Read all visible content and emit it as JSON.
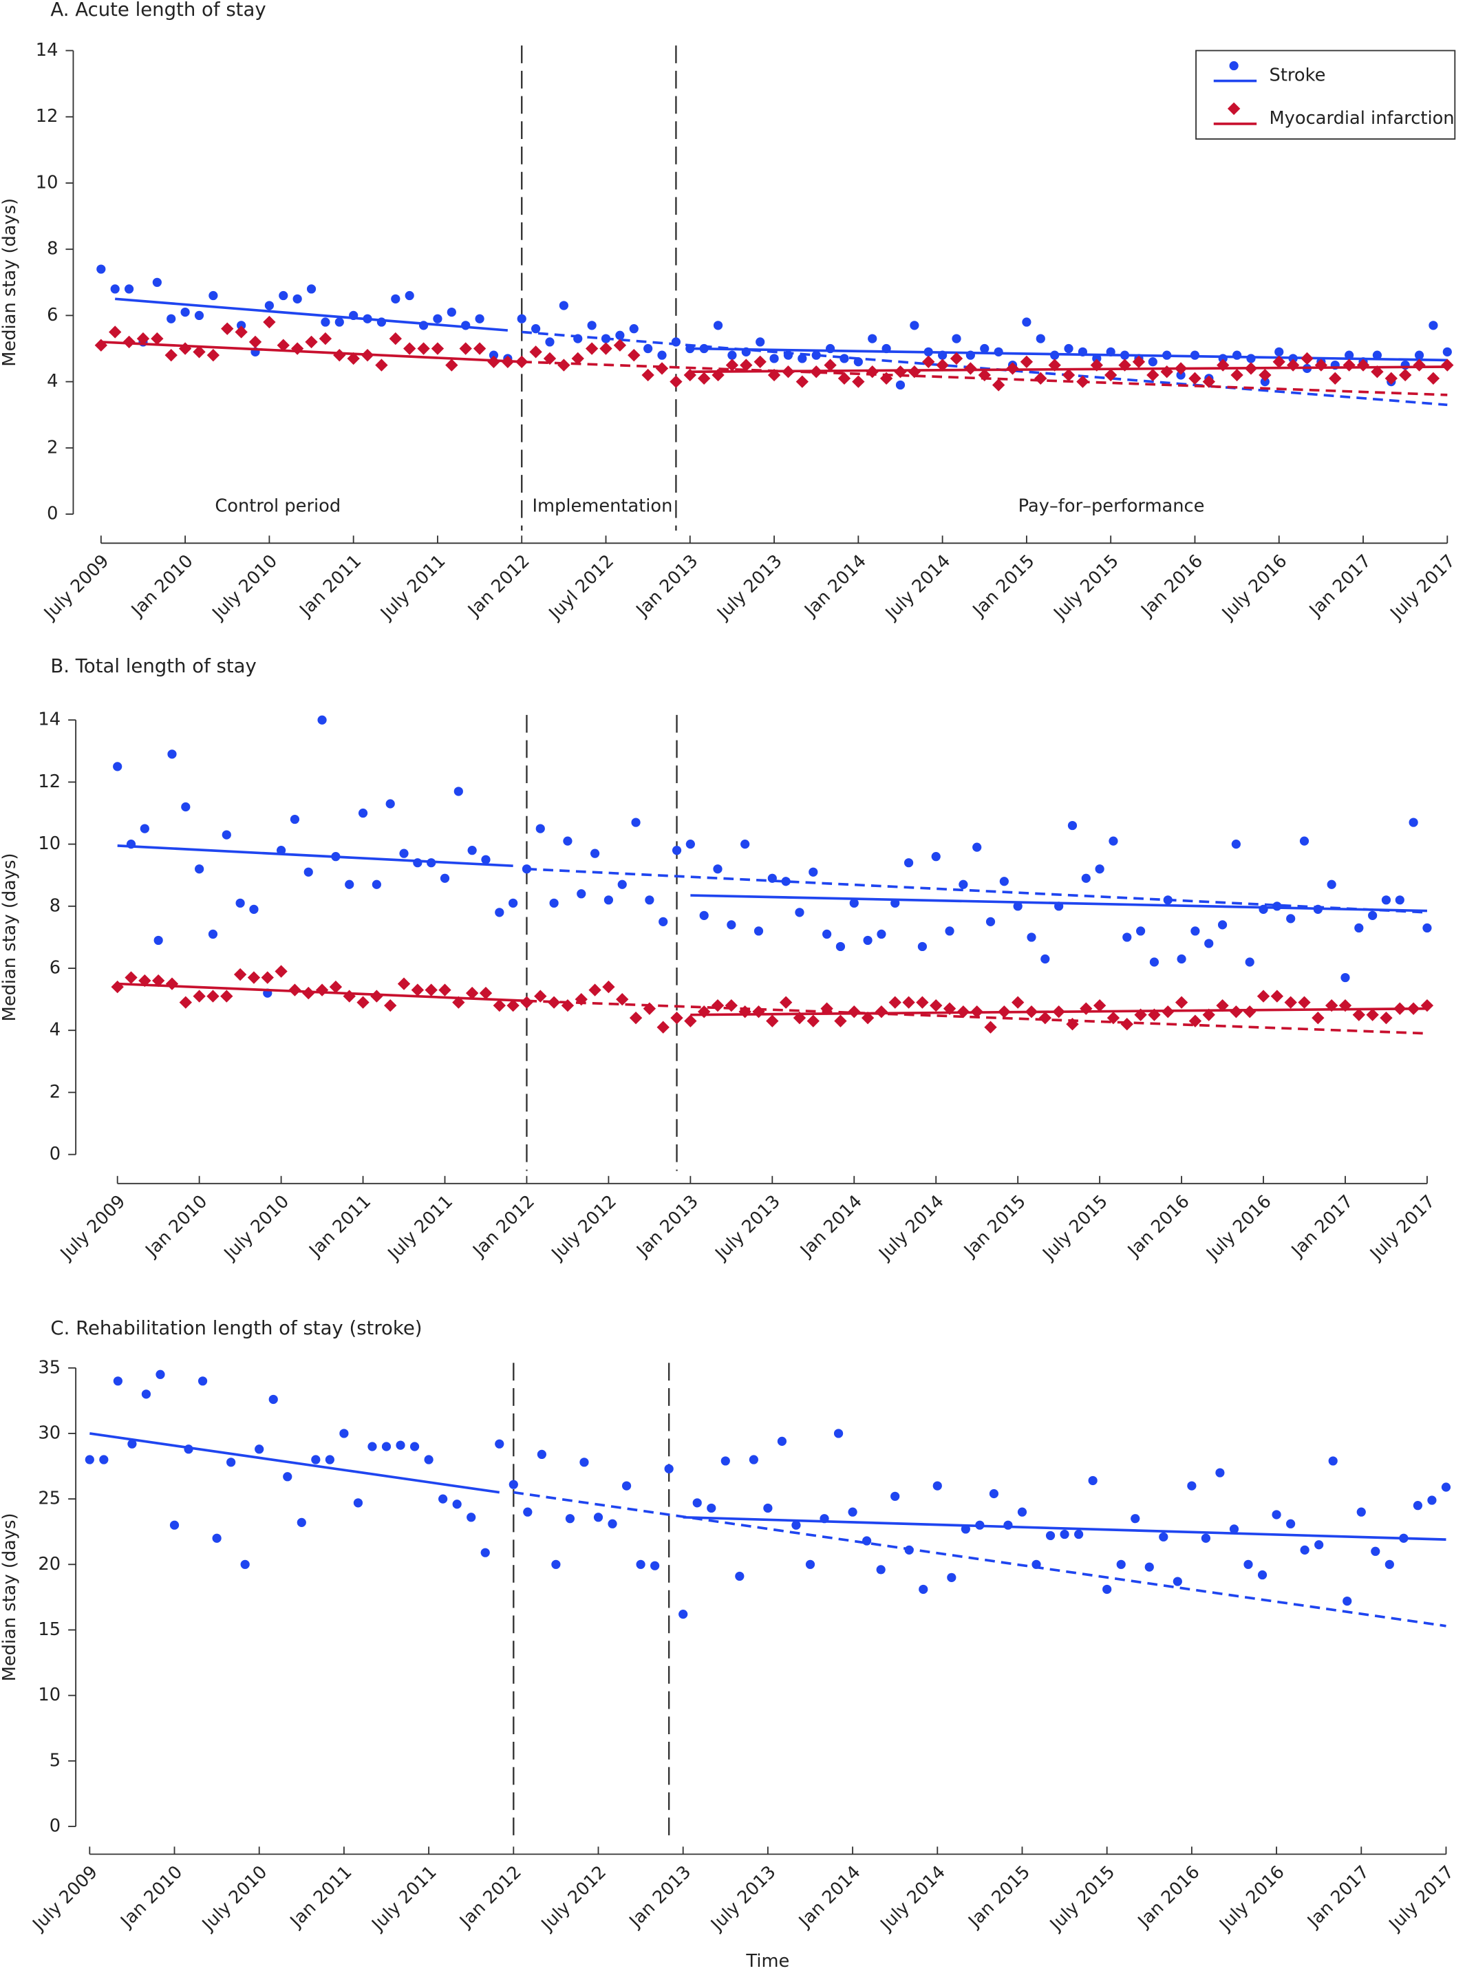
{
  "chart_data": [
    {
      "type": "scatter",
      "title": "A. Acute length of stay",
      "y_label": "Median stay (days)",
      "categories": [
        "July 2009",
        null,
        null,
        null,
        null,
        null,
        "Jan 2010",
        null,
        null,
        null,
        null,
        null,
        "July 2010",
        null,
        null,
        null,
        null,
        null,
        "Jan 2011",
        null,
        null,
        null,
        null,
        null,
        "July 2011",
        null,
        null,
        null,
        null,
        null,
        "Jan 2012",
        null,
        null,
        null,
        null,
        null,
        "Juyl 2012",
        null,
        null,
        null,
        null,
        null,
        "Jan 2013",
        null,
        null,
        null,
        null,
        null,
        "July 2013",
        null,
        null,
        null,
        null,
        null,
        "Jan 2014",
        null,
        null,
        null,
        null,
        null,
        "July 2014",
        null,
        null,
        null,
        null,
        null,
        "Jan 2015",
        null,
        null,
        null,
        null,
        null,
        "July 2015",
        null,
        null,
        null,
        null,
        null,
        "Jan 2016",
        null,
        null,
        null,
        null,
        null,
        "July 2016",
        null,
        null,
        null,
        null,
        null,
        "Jan 2017",
        null,
        null,
        null,
        null,
        null,
        "July 2017"
      ],
      "ylim": [
        0,
        14
      ],
      "yticks": [
        0,
        2,
        4,
        6,
        8,
        10,
        12,
        14
      ],
      "phase_lines": [
        30,
        41
      ],
      "annotations": [
        "Control period",
        "Implementation",
        "Pay–for–performance"
      ],
      "legend": "top right",
      "series": [
        {
          "name": "Stroke",
          "color": "#1f45f0",
          "marker": "circle",
          "values": [
            7.4,
            6.8,
            6.8,
            5.2,
            7.0,
            5.9,
            6.1,
            6.0,
            6.6,
            5.6,
            5.7,
            4.9,
            6.3,
            6.6,
            6.5,
            6.8,
            5.8,
            5.8,
            6.0,
            5.9,
            5.8,
            6.5,
            6.6,
            5.7,
            5.9,
            6.1,
            5.7,
            5.9,
            4.8,
            4.7,
            5.9,
            5.6,
            5.2,
            6.3,
            5.3,
            5.7,
            5.3,
            5.4,
            5.6,
            5.0,
            4.8,
            5.2,
            5.0,
            5.0,
            5.7,
            4.8,
            4.9,
            5.2,
            4.7,
            4.8,
            4.7,
            4.8,
            5.0,
            4.7,
            4.6,
            5.3,
            5.0,
            3.9,
            5.7,
            4.9,
            4.8,
            5.3,
            4.8,
            5.0,
            4.9,
            4.5,
            5.8,
            5.3,
            4.8,
            5.0,
            4.9,
            4.7,
            4.9,
            4.8,
            4.7,
            4.6,
            4.8,
            4.2,
            4.8,
            4.1,
            4.7,
            4.8,
            4.7,
            4.0,
            4.9,
            4.7,
            4.4,
            4.6,
            4.5,
            4.8,
            4.6,
            4.8,
            4.0,
            4.5,
            4.8,
            5.7,
            4.9
          ],
          "trends": [
            {
              "x": [
                1,
                29
              ],
              "y": [
                6.5,
                5.55
              ],
              "style": "solid"
            },
            {
              "x": [
                30,
                96
              ],
              "y": [
                5.5,
                3.3
              ],
              "style": "dashed"
            },
            {
              "x": [
                42,
                96
              ],
              "y": [
                5.0,
                4.65
              ],
              "style": "solid"
            }
          ]
        },
        {
          "name": "Myocardial infarction",
          "color": "#c8102e",
          "marker": "diamond",
          "values": [
            5.1,
            5.5,
            5.2,
            5.3,
            5.3,
            4.8,
            5.0,
            4.9,
            4.8,
            5.6,
            5.5,
            5.2,
            5.8,
            5.1,
            5.0,
            5.2,
            5.3,
            4.8,
            4.7,
            4.8,
            4.5,
            5.3,
            5.0,
            5.0,
            5.0,
            4.5,
            5.0,
            5.0,
            4.6,
            4.6,
            4.6,
            4.9,
            4.7,
            4.5,
            4.7,
            5.0,
            5.0,
            5.1,
            4.8,
            4.2,
            4.4,
            4.0,
            4.2,
            4.1,
            4.2,
            4.5,
            4.5,
            4.6,
            4.2,
            4.3,
            4.0,
            4.3,
            4.5,
            4.1,
            4.0,
            4.3,
            4.1,
            4.3,
            4.3,
            4.6,
            4.5,
            4.7,
            4.4,
            4.2,
            3.9,
            4.4,
            4.6,
            4.1,
            4.5,
            4.2,
            4.0,
            4.5,
            4.2,
            4.5,
            4.6,
            4.2,
            4.3,
            4.4,
            4.1,
            4.0,
            4.5,
            4.2,
            4.4,
            4.2,
            4.6,
            4.5,
            4.7,
            4.5,
            4.1,
            4.5,
            4.5,
            4.3,
            4.1,
            4.2,
            4.5,
            4.1,
            4.5
          ],
          "trends": [
            {
              "x": [
                0,
                30
              ],
              "y": [
                5.2,
                4.6
              ],
              "style": "solid"
            },
            {
              "x": [
                30,
                96
              ],
              "y": [
                4.6,
                3.6
              ],
              "style": "dashed"
            },
            {
              "x": [
                42,
                96
              ],
              "y": [
                4.3,
                4.45
              ],
              "style": "solid"
            }
          ]
        }
      ]
    },
    {
      "type": "scatter",
      "title": "B. Total length of stay",
      "y_label": "Median stay (days)",
      "categories": [
        "July 2009",
        null,
        null,
        null,
        null,
        null,
        "Jan 2010",
        null,
        null,
        null,
        null,
        null,
        "July 2010",
        null,
        null,
        null,
        null,
        null,
        "Jan 2011",
        null,
        null,
        null,
        null,
        null,
        "July 2011",
        null,
        null,
        null,
        null,
        null,
        "Jan 2012",
        null,
        null,
        null,
        null,
        null,
        "July 2012",
        null,
        null,
        null,
        null,
        null,
        "Jan 2013",
        null,
        null,
        null,
        null,
        null,
        "July 2013",
        null,
        null,
        null,
        null,
        null,
        "Jan 2014",
        null,
        null,
        null,
        null,
        null,
        "July 2014",
        null,
        null,
        null,
        null,
        null,
        "Jan 2015",
        null,
        null,
        null,
        null,
        null,
        "July 2015",
        null,
        null,
        null,
        null,
        null,
        "Jan 2016",
        null,
        null,
        null,
        null,
        null,
        "July 2016",
        null,
        null,
        null,
        null,
        null,
        "Jan 2017",
        null,
        null,
        null,
        null,
        null,
        "July 2017"
      ],
      "ylim": [
        0,
        14
      ],
      "yticks": [
        0,
        2,
        4,
        6,
        8,
        10,
        12,
        14
      ],
      "phase_lines": [
        30,
        41
      ],
      "series": [
        {
          "color": "#1f45f0",
          "marker": "circle",
          "values": [
            12.5,
            10.0,
            10.5,
            6.9,
            12.9,
            11.2,
            9.2,
            7.1,
            10.3,
            8.1,
            7.9,
            5.2,
            9.8,
            10.8,
            9.1,
            14.0,
            9.6,
            8.7,
            11.0,
            8.7,
            11.3,
            9.7,
            9.4,
            9.4,
            8.9,
            11.7,
            9.8,
            9.5,
            7.8,
            8.1,
            9.2,
            10.5,
            8.1,
            10.1,
            8.4,
            9.7,
            8.2,
            8.7,
            10.7,
            8.2,
            7.5,
            9.8,
            10.0,
            7.7,
            9.2,
            7.4,
            10.0,
            7.2,
            8.9,
            8.8,
            7.8,
            9.1,
            7.1,
            6.7,
            8.1,
            6.9,
            7.1,
            8.1,
            9.4,
            6.7,
            9.6,
            7.2,
            8.7,
            9.9,
            7.5,
            8.8,
            8.0,
            7.0,
            6.3,
            8.0,
            10.6,
            8.9,
            9.2,
            10.1,
            7.0,
            7.2,
            6.2,
            8.2,
            6.3,
            7.2,
            6.8,
            7.4,
            10.0,
            6.2,
            7.9,
            8.0,
            7.6,
            10.1,
            7.9,
            8.7,
            5.7,
            7.3,
            7.7,
            8.2,
            8.2,
            10.7,
            7.3
          ],
          "trends": [
            {
              "x": [
                0,
                29
              ],
              "y": [
                9.95,
                9.3
              ],
              "style": "solid"
            },
            {
              "x": [
                30,
                96
              ],
              "y": [
                9.2,
                7.8
              ],
              "style": "dashed"
            },
            {
              "x": [
                42,
                96
              ],
              "y": [
                8.35,
                7.85
              ],
              "style": "solid"
            }
          ]
        },
        {
          "color": "#c8102e",
          "marker": "diamond",
          "values": [
            5.4,
            5.7,
            5.6,
            5.6,
            5.5,
            4.9,
            5.1,
            5.1,
            5.1,
            5.8,
            5.7,
            5.7,
            5.9,
            5.3,
            5.2,
            5.3,
            5.4,
            5.1,
            4.9,
            5.1,
            4.8,
            5.5,
            5.3,
            5.3,
            5.3,
            4.9,
            5.2,
            5.2,
            4.8,
            4.8,
            4.9,
            5.1,
            4.9,
            4.8,
            5.0,
            5.3,
            5.4,
            5.0,
            4.4,
            4.7,
            4.1,
            4.4,
            4.3,
            4.6,
            4.8,
            4.8,
            4.6,
            4.6,
            4.3,
            4.9,
            4.4,
            4.3,
            4.7,
            4.3,
            4.6,
            4.4,
            4.6,
            4.9,
            4.9,
            4.9,
            4.8,
            4.7,
            4.6,
            4.6,
            4.1,
            4.6,
            4.9,
            4.6,
            4.4,
            4.6,
            4.2,
            4.7,
            4.8,
            4.4,
            4.2,
            4.5,
            4.5,
            4.6,
            4.9,
            4.3,
            4.5,
            4.8,
            4.6,
            4.6,
            5.1,
            5.1,
            4.9,
            4.9,
            4.4,
            4.8,
            4.8,
            4.5,
            4.5,
            4.4,
            4.7,
            4.7,
            4.8
          ],
          "trends": [
            {
              "x": [
                0,
                30
              ],
              "y": [
                5.5,
                4.95
              ],
              "style": "solid"
            },
            {
              "x": [
                30,
                96
              ],
              "y": [
                4.95,
                3.9
              ],
              "style": "dashed"
            },
            {
              "x": [
                42,
                96
              ],
              "y": [
                4.5,
                4.7
              ],
              "style": "solid"
            }
          ]
        }
      ]
    },
    {
      "type": "scatter",
      "title": "C. Rehabilitation length of stay (stroke)",
      "y_label": "Median stay (days)",
      "x_label": "Time",
      "categories": [
        "July 2009",
        null,
        null,
        null,
        null,
        null,
        "Jan 2010",
        null,
        null,
        null,
        null,
        null,
        "July 2010",
        null,
        null,
        null,
        null,
        null,
        "Jan 2011",
        null,
        null,
        null,
        null,
        null,
        "July 2011",
        null,
        null,
        null,
        null,
        null,
        "Jan 2012",
        null,
        null,
        null,
        null,
        null,
        "July 2012",
        null,
        null,
        null,
        null,
        null,
        "Jan 2013",
        null,
        null,
        null,
        null,
        null,
        "July 2013",
        null,
        null,
        null,
        null,
        null,
        "Jan 2014",
        null,
        null,
        null,
        null,
        null,
        "July 2014",
        null,
        null,
        null,
        null,
        null,
        "Jan 2015",
        null,
        null,
        null,
        null,
        null,
        "July 2015",
        null,
        null,
        null,
        null,
        null,
        "Jan 2016",
        null,
        null,
        null,
        null,
        null,
        "July 2016",
        null,
        null,
        null,
        null,
        null,
        "Jan 2017",
        null,
        null,
        null,
        null,
        null,
        "July 2017"
      ],
      "ylim": [
        0,
        35
      ],
      "yticks": [
        0,
        5,
        10,
        15,
        20,
        25,
        30,
        35
      ],
      "phase_lines": [
        30,
        41
      ],
      "series": [
        {
          "color": "#1f45f0",
          "marker": "circle",
          "values": [
            28,
            28,
            34,
            29.2,
            33,
            34.5,
            23,
            28.8,
            34,
            22,
            27.8,
            20,
            28.8,
            32.6,
            26.7,
            23.2,
            28,
            28,
            30,
            24.7,
            29,
            29,
            29.1,
            29,
            28,
            25,
            24.6,
            23.6,
            20.9,
            29.2,
            26.1,
            24,
            28.4,
            20,
            23.5,
            27.8,
            23.6,
            23.1,
            26,
            20,
            19.9,
            27.3,
            16.2,
            24.7,
            24.3,
            27.9,
            19.1,
            28,
            24.3,
            29.4,
            23,
            20,
            23.5,
            30,
            24,
            21.8,
            19.6,
            25.2,
            21.1,
            18.1,
            26,
            19,
            22.7,
            23,
            25.4,
            23,
            24,
            20,
            22.2,
            22.3,
            22.3,
            26.4,
            18.1,
            20,
            23.5,
            19.8,
            22.1,
            18.7,
            26,
            22,
            27,
            22.7,
            20,
            19.2,
            23.8,
            23.1,
            21.1,
            21.5,
            27.9,
            17.2,
            24,
            21,
            20,
            22.0,
            24.5,
            24.9,
            25.9
          ],
          "trends": [
            {
              "x": [
                0,
                29
              ],
              "y": [
                30,
                25.5
              ],
              "style": "solid"
            },
            {
              "x": [
                30,
                96
              ],
              "y": [
                25.5,
                15.3
              ],
              "style": "dashed"
            },
            {
              "x": [
                42,
                96
              ],
              "y": [
                23.6,
                21.9
              ],
              "style": "solid"
            }
          ]
        }
      ]
    }
  ]
}
